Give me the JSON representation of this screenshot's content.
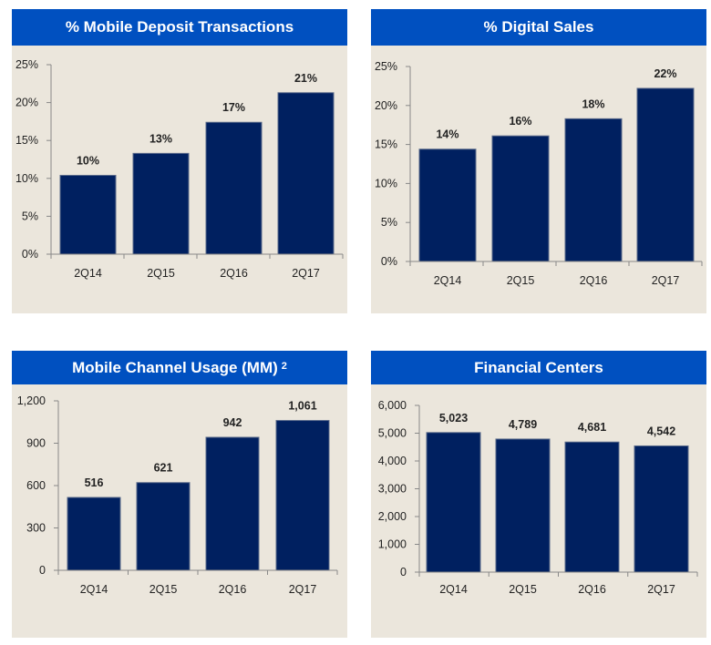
{
  "chart_data": [
    {
      "type": "bar",
      "title": "% Mobile Deposit Transactions",
      "categories": [
        "2Q14",
        "2Q15",
        "2Q16",
        "2Q17"
      ],
      "values": [
        10.4,
        13.3,
        17.4,
        21.3
      ],
      "data_labels": [
        "10%",
        "13%",
        "17%",
        "21%"
      ],
      "ylim": [
        0,
        25
      ],
      "yticks": [
        "0%",
        "5%",
        "10%",
        "15%",
        "20%",
        "25%"
      ],
      "ytick_values": [
        0,
        5,
        10,
        15,
        20,
        25
      ],
      "color": "#002060",
      "grid": false
    },
    {
      "type": "bar",
      "title": "% Digital Sales",
      "categories": [
        "2Q14",
        "2Q15",
        "2Q16",
        "2Q17"
      ],
      "values": [
        14.4,
        16.1,
        18.3,
        22.2
      ],
      "data_labels": [
        "14%",
        "16%",
        "18%",
        "22%"
      ],
      "ylim": [
        0,
        25
      ],
      "yticks": [
        "0%",
        "5%",
        "10%",
        "15%",
        "20%",
        "25%"
      ],
      "ytick_values": [
        0,
        5,
        10,
        15,
        20,
        25
      ],
      "color": "#002060",
      "grid": false
    },
    {
      "type": "bar",
      "title": "Mobile Channel Usage (MM)",
      "title_superscript": "2",
      "categories": [
        "2Q14",
        "2Q15",
        "2Q16",
        "2Q17"
      ],
      "values": [
        516,
        621,
        942,
        1061
      ],
      "data_labels": [
        "516",
        "621",
        "942",
        "1,061"
      ],
      "ylim": [
        0,
        1200
      ],
      "yticks": [
        "0",
        "300",
        "600",
        "900",
        "1,200"
      ],
      "ytick_values": [
        0,
        300,
        600,
        900,
        1200
      ],
      "color": "#002060",
      "grid": false
    },
    {
      "type": "bar",
      "title": "Financial Centers",
      "categories": [
        "2Q14",
        "2Q15",
        "2Q16",
        "2Q17"
      ],
      "values": [
        5023,
        4789,
        4681,
        4542
      ],
      "data_labels": [
        "5,023",
        "4,789",
        "4,681",
        "4,542"
      ],
      "ylim": [
        0,
        6000
      ],
      "yticks": [
        "0",
        "1,000",
        "2,000",
        "3,000",
        "4,000",
        "5,000",
        "6,000"
      ],
      "ytick_values": [
        0,
        1000,
        2000,
        3000,
        4000,
        5000,
        6000
      ],
      "color": "#002060",
      "grid": false
    }
  ]
}
